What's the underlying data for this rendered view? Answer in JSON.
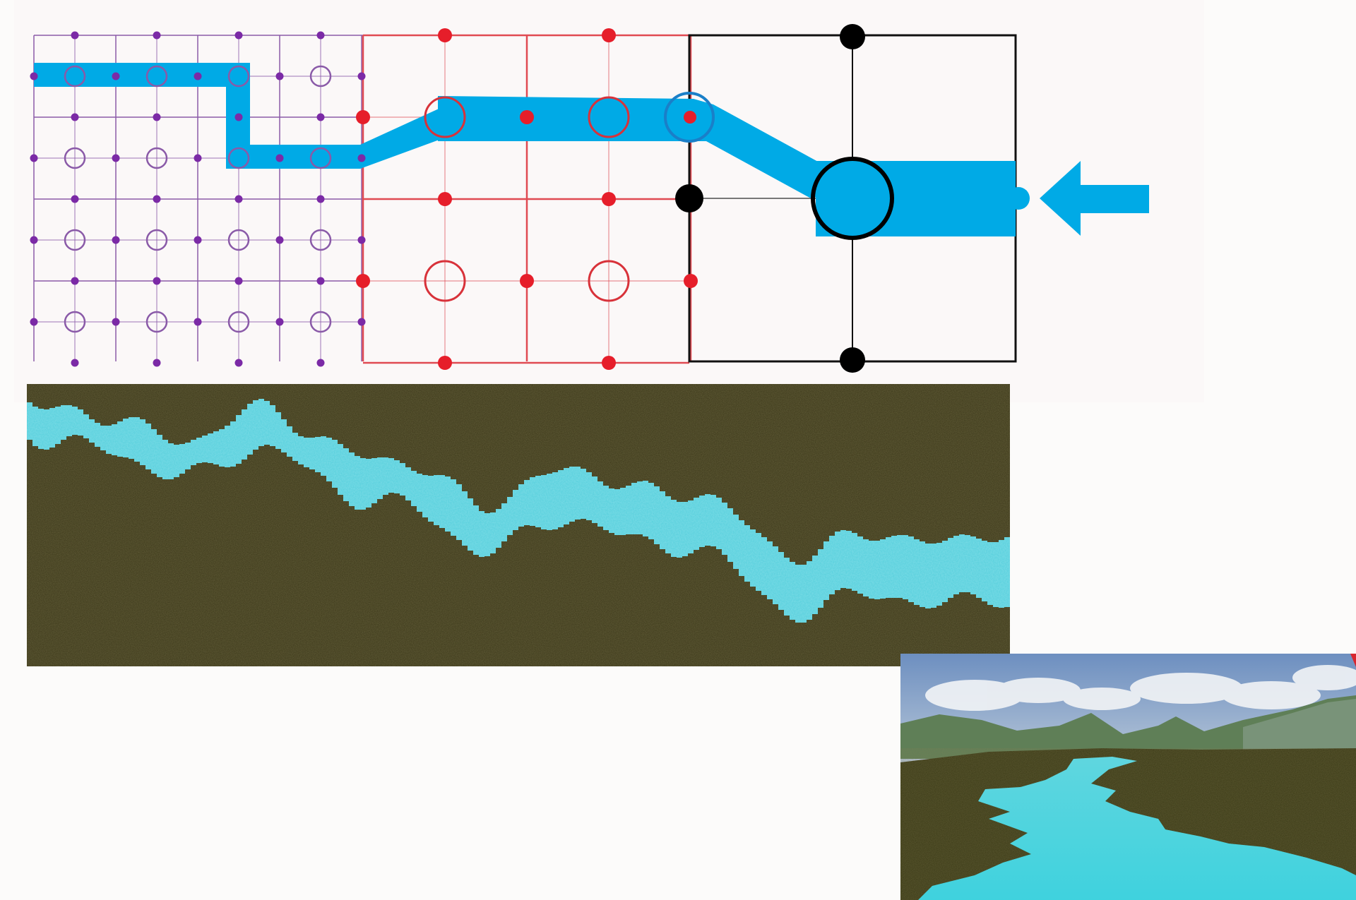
{
  "colors": {
    "page_background": "#fcfbfa",
    "diagram_background": "#fbf8f8",
    "fine_grid": "#7b3fa0",
    "fine_grid_nodes": "#7b2aa6",
    "medium_grid": "#e0323a",
    "medium_grid_nodes": "#e61e2a",
    "coarse_grid": "#111111",
    "flow_path": "#00aae6",
    "terrain": "#3a3517",
    "terrain_dark": "#2a2710",
    "water": "#55d0dc",
    "render_water": "#4ed8e2",
    "render_grass": "#3b3a16",
    "sky_top": "#6d8fc0",
    "sky_bottom": "#dfe5ea",
    "mountains": "#5e7f55"
  },
  "panels": {
    "grid_diagram": {
      "description_icon": "multiresolution-grid",
      "arrow_icon": "arrow-left-icon"
    },
    "terrain_map": {
      "description_icon": "river-heightmap"
    },
    "render_view": {
      "description_icon": "river-3d-render"
    }
  }
}
